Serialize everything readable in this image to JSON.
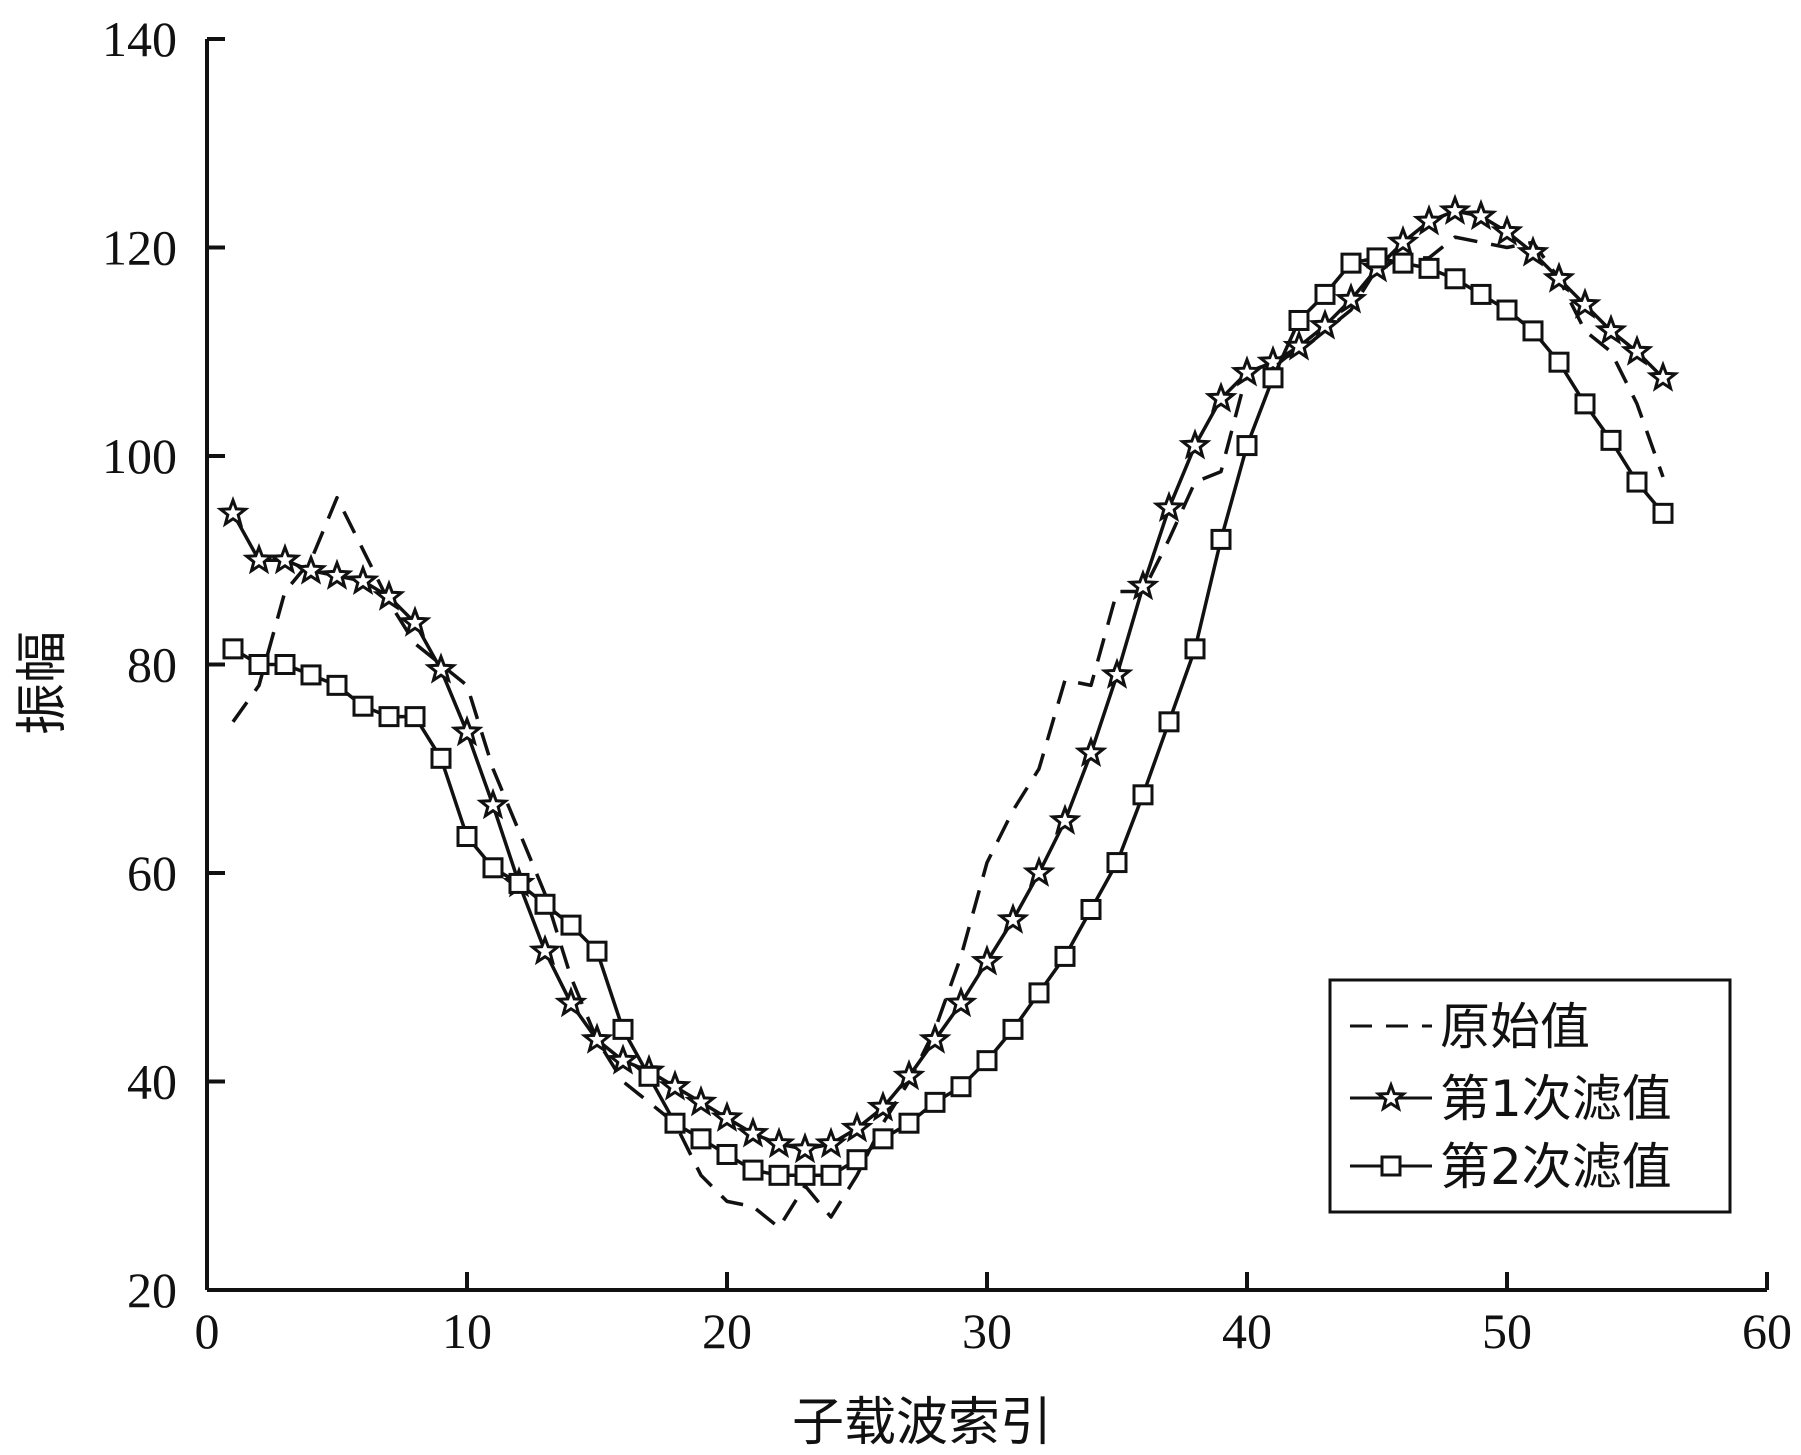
{
  "chart_data": {
    "type": "line",
    "title": "",
    "xlabel": "子载波索引",
    "ylabel": "振幅",
    "xlim": [
      0,
      60
    ],
    "ylim": [
      20,
      140
    ],
    "xticks": [
      0,
      10,
      20,
      30,
      40,
      50,
      60
    ],
    "yticks": [
      20,
      40,
      60,
      80,
      100,
      120,
      140
    ],
    "grid": false,
    "legend_position": "bottom-right",
    "series": [
      {
        "name": "原始值",
        "style": "dashed",
        "marker": "none",
        "x": [
          1,
          2,
          3,
          4,
          5,
          6,
          7,
          8,
          9,
          10,
          11,
          12,
          13,
          14,
          15,
          16,
          17,
          18,
          19,
          20,
          21,
          22,
          23,
          24,
          25,
          26,
          27,
          28,
          29,
          30,
          31,
          32,
          33,
          34,
          35,
          36,
          37,
          38,
          39,
          40,
          41,
          42,
          43,
          44,
          45,
          46,
          47,
          48,
          49,
          50,
          51,
          52,
          53,
          54,
          55,
          56
        ],
        "values": [
          74.5,
          78,
          87,
          90,
          96,
          91,
          86,
          82,
          80,
          78,
          70,
          64,
          58,
          50,
          44,
          40,
          38,
          36,
          31,
          28.5,
          28,
          26,
          30,
          27,
          31,
          36,
          40,
          45,
          52,
          61,
          66,
          70,
          78.5,
          78,
          87,
          87,
          92,
          97.5,
          98.5,
          108,
          109,
          110,
          112,
          114,
          118,
          119,
          119,
          121,
          120.5,
          120,
          120.5,
          117,
          112,
          110,
          105,
          98
        ]
      },
      {
        "name": "第1次滤值",
        "style": "solid",
        "marker": "star",
        "x": [
          1,
          2,
          3,
          4,
          5,
          6,
          7,
          8,
          9,
          10,
          11,
          12,
          13,
          14,
          15,
          16,
          17,
          18,
          19,
          20,
          21,
          22,
          23,
          24,
          25,
          26,
          27,
          28,
          29,
          30,
          31,
          32,
          33,
          34,
          35,
          36,
          37,
          38,
          39,
          40,
          41,
          42,
          43,
          44,
          45,
          46,
          47,
          48,
          49,
          50,
          51,
          52,
          53,
          54,
          55,
          56
        ],
        "values": [
          94.5,
          90,
          90,
          89,
          88.5,
          88,
          86.5,
          84,
          79.5,
          73.5,
          66.5,
          59,
          52.5,
          47.5,
          44,
          42,
          41,
          39.5,
          38,
          36.5,
          35,
          34,
          33.5,
          34,
          35.5,
          37.5,
          40.5,
          44,
          47.5,
          51.5,
          55.5,
          60,
          65,
          71.5,
          79,
          87.5,
          95,
          101,
          105.5,
          108,
          109,
          110.5,
          112.5,
          115,
          118,
          120.5,
          122.5,
          123.5,
          123,
          121.5,
          119.5,
          117,
          114.5,
          112,
          110,
          107.5
        ]
      },
      {
        "name": "第2次滤值",
        "style": "solid",
        "marker": "square",
        "x": [
          1,
          2,
          3,
          4,
          5,
          6,
          7,
          8,
          9,
          10,
          11,
          12,
          13,
          14,
          15,
          16,
          17,
          18,
          19,
          20,
          21,
          22,
          23,
          24,
          25,
          26,
          27,
          28,
          29,
          30,
          31,
          32,
          33,
          34,
          35,
          36,
          37,
          38,
          39,
          40,
          41,
          42,
          43,
          44,
          45,
          46,
          47,
          48,
          49,
          50,
          51,
          52,
          53,
          54,
          55,
          56
        ],
        "values": [
          81.5,
          80,
          80,
          79,
          78,
          76,
          75,
          75,
          71,
          63.5,
          60.5,
          59,
          57,
          55,
          52.5,
          45,
          40.5,
          36,
          34.5,
          33,
          31.5,
          31,
          31,
          31,
          32.5,
          34.5,
          36,
          38,
          39.5,
          42,
          45,
          48.5,
          52,
          56.5,
          61,
          67.5,
          74.5,
          81.5,
          92,
          101,
          107.5,
          113,
          115.5,
          118.5,
          119,
          118.5,
          118,
          117,
          115.5,
          114,
          112,
          109,
          105,
          101.5,
          97.5,
          94.5
        ]
      }
    ]
  }
}
